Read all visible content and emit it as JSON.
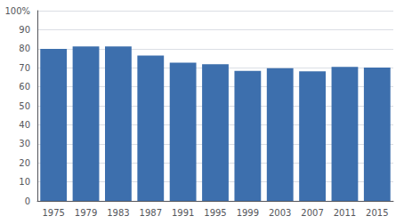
{
  "chart_data": {
    "type": "bar",
    "categories": [
      "1975",
      "1979",
      "1983",
      "1987",
      "1991",
      "1995",
      "1999",
      "2003",
      "2007",
      "2011",
      "2015"
    ],
    "values": [
      79.9,
      81.2,
      81.2,
      76.4,
      72.7,
      71.9,
      68.3,
      69.7,
      68.1,
      70.5,
      70.1
    ],
    "color": "#3d6fad",
    "ylim": [
      0,
      100
    ],
    "yticks": [
      0,
      10,
      20,
      30,
      40,
      50,
      60,
      70,
      80,
      90,
      {
        "value": 100,
        "label": "100%"
      }
    ],
    "grid": true
  }
}
